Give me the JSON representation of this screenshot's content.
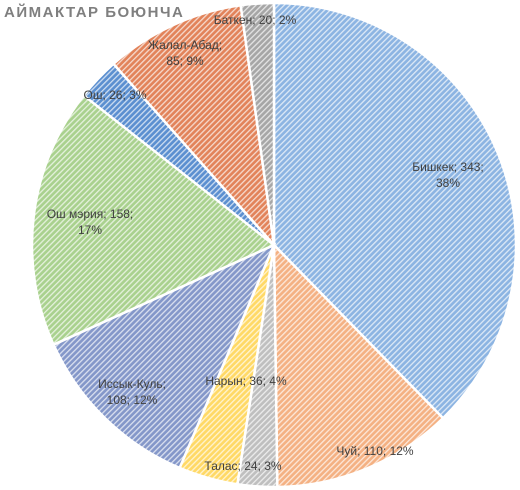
{
  "chart_data": {
    "type": "pie",
    "title": "АЙМАКТАР БОЮНЧА",
    "start_angle_deg": 0,
    "direction": "clockwise",
    "slices": [
      {
        "name": "Бишкек",
        "value": 343,
        "percent": "38%",
        "color": "#8cb4e2",
        "label_lines": [
          "Бишкек; 343;",
          "38%"
        ]
      },
      {
        "name": "Чуй",
        "value": 110,
        "percent": "12%",
        "color": "#f4b183",
        "label_lines": [
          "Чуй; 110; 12%"
        ]
      },
      {
        "name": "Талас",
        "value": 24,
        "percent": "3%",
        "color": "#bfbfbf",
        "label_lines": [
          "Талас; 24; 3%"
        ]
      },
      {
        "name": "Нарын",
        "value": 36,
        "percent": "4%",
        "color": "#ffd966",
        "label_lines": [
          "Нарын; 36; 4%"
        ]
      },
      {
        "name": "Иссык-Куль",
        "value": 108,
        "percent": "12%",
        "color": "#8497c9",
        "label_lines": [
          "Иссык-Куль;",
          "108; 12%"
        ]
      },
      {
        "name": "Ош мэрия",
        "value": 158,
        "percent": "17%",
        "color": "#a9d18e",
        "label_lines": [
          "Ош мэрия; 158;",
          "17%"
        ]
      },
      {
        "name": "Ош",
        "value": 26,
        "percent": "3%",
        "color": "#5b8fd0",
        "label_lines": [
          "Ош; 26; 3%"
        ]
      },
      {
        "name": "Жалал-Абад",
        "value": 85,
        "percent": "9%",
        "color": "#e2835a",
        "label_lines": [
          "Жалал-Абад;",
          "85; 9%"
        ]
      },
      {
        "name": "Баткен",
        "value": 20,
        "percent": "2%",
        "color": "#a6a6a6",
        "label_lines": [
          "Баткен; 20; 2%"
        ]
      }
    ]
  }
}
